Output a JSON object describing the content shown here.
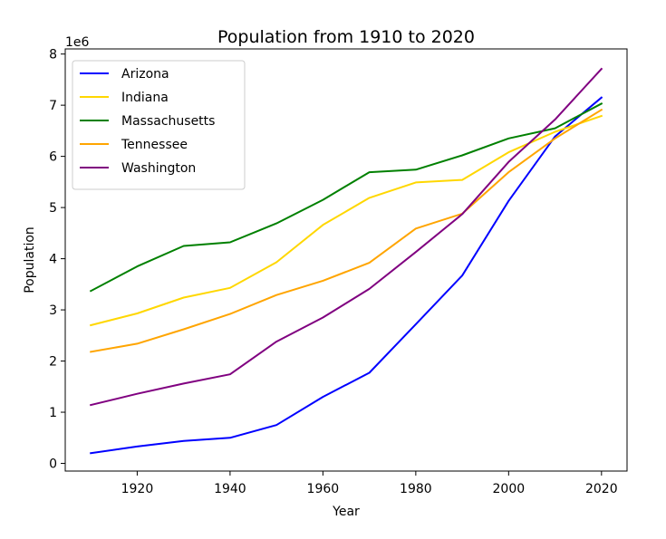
{
  "chart_data": {
    "type": "line",
    "title": "Population from 1910 to 2020",
    "xlabel": "Year",
    "ylabel": "Population",
    "y_offset_text": "1e6",
    "x": [
      1910,
      1920,
      1930,
      1940,
      1950,
      1960,
      1970,
      1980,
      1990,
      2000,
      2010,
      2020
    ],
    "xlim": [
      1904.5,
      2025.5
    ],
    "ylim": [
      -0.15,
      8.1
    ],
    "x_ticks": [
      1920,
      1940,
      1960,
      1980,
      2000,
      2020
    ],
    "y_ticks": [
      0,
      1,
      2,
      3,
      4,
      5,
      6,
      7,
      8
    ],
    "y_scale_note": "values in millions (1e6)",
    "legend_position": "upper-left",
    "grid": false,
    "series": [
      {
        "name": "Arizona",
        "color": "#0000ff",
        "values": [
          0.2,
          0.33,
          0.44,
          0.5,
          0.75,
          1.3,
          1.77,
          2.72,
          3.67,
          5.13,
          6.39,
          7.15
        ]
      },
      {
        "name": "Indiana",
        "color": "#ffd700",
        "values": [
          2.7,
          2.93,
          3.24,
          3.43,
          3.93,
          4.66,
          5.19,
          5.49,
          5.54,
          6.08,
          6.48,
          6.79
        ]
      },
      {
        "name": "Massachusetts",
        "color": "#008000",
        "values": [
          3.37,
          3.85,
          4.25,
          4.32,
          4.69,
          5.15,
          5.69,
          5.74,
          6.02,
          6.35,
          6.55,
          7.03
        ]
      },
      {
        "name": "Tennessee",
        "color": "#ffa500",
        "values": [
          2.18,
          2.34,
          2.62,
          2.92,
          3.29,
          3.57,
          3.92,
          4.59,
          4.88,
          5.69,
          6.35,
          6.91
        ]
      },
      {
        "name": "Washington",
        "color": "#800080",
        "values": [
          1.14,
          1.36,
          1.56,
          1.74,
          2.38,
          2.85,
          3.41,
          4.13,
          4.87,
          5.89,
          6.72,
          7.71
        ]
      }
    ]
  }
}
